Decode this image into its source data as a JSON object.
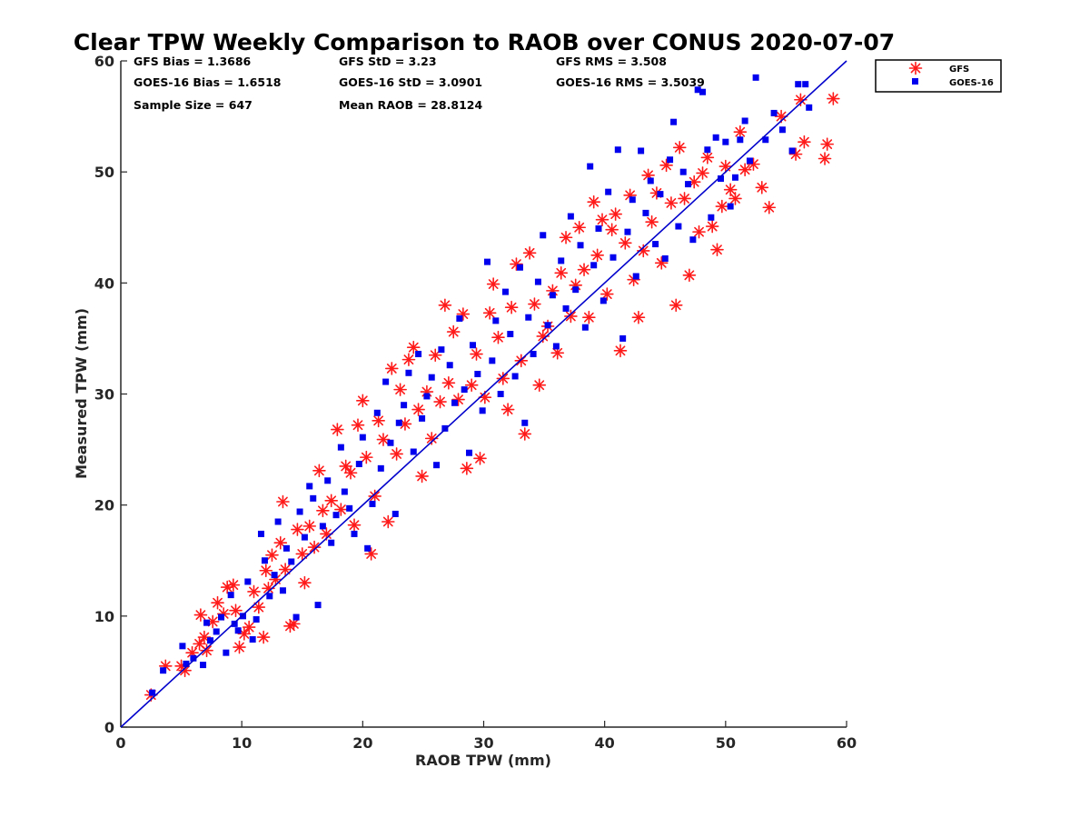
{
  "chart_data": {
    "type": "scatter",
    "title": "Clear TPW Weekly Comparison to RAOB over CONUS 2020-07-07",
    "xlabel": "RAOB TPW (mm)",
    "ylabel": "Measured TPW (mm)",
    "xlim": [
      0,
      60
    ],
    "ylim": [
      0,
      60
    ],
    "xticks": [
      "0",
      "10",
      "20",
      "30",
      "40",
      "50",
      "60"
    ],
    "yticks": [
      "0",
      "10",
      "20",
      "30",
      "40",
      "50",
      "60"
    ],
    "grid": false,
    "legend_position": "outside-top-right",
    "reference_line": {
      "name": "one-to-one line",
      "from": [
        0,
        0
      ],
      "to": [
        60,
        60
      ],
      "color": "#0000cc"
    },
    "stats": {
      "gfs_bias": "GFS Bias = 1.3686",
      "gfs_std": "GFS StD = 3.23",
      "gfs_rms": "GFS RMS = 3.508",
      "goes_bias": "GOES-16 Bias = 1.6518",
      "goes_std": "GOES-16 StD = 3.0901",
      "goes_rms": "GOES-16 RMS = 3.5039",
      "sample_size": "Sample Size = 647",
      "mean_raob": "Mean RAOB = 28.8124"
    },
    "series": [
      {
        "name": "GFS",
        "marker": "asterisk",
        "color": "#ff1a1a",
        "points": [
          [
            2.5,
            2.9
          ],
          [
            3.7,
            5.5
          ],
          [
            5.0,
            5.5
          ],
          [
            5.3,
            5.1
          ],
          [
            5.9,
            6.7
          ],
          [
            6.5,
            7.5
          ],
          [
            6.6,
            10.1
          ],
          [
            6.9,
            8.1
          ],
          [
            7.1,
            6.9
          ],
          [
            7.6,
            9.5
          ],
          [
            8.0,
            11.2
          ],
          [
            8.5,
            10.2
          ],
          [
            8.8,
            12.6
          ],
          [
            9.3,
            12.8
          ],
          [
            9.5,
            10.5
          ],
          [
            9.8,
            7.2
          ],
          [
            10.2,
            8.4
          ],
          [
            10.6,
            9.0
          ],
          [
            11.0,
            12.2
          ],
          [
            11.4,
            10.8
          ],
          [
            11.8,
            8.1
          ],
          [
            12.0,
            14.1
          ],
          [
            12.2,
            12.5
          ],
          [
            12.5,
            15.5
          ],
          [
            12.8,
            13.3
          ],
          [
            13.2,
            16.6
          ],
          [
            13.4,
            20.3
          ],
          [
            13.6,
            14.2
          ],
          [
            14.0,
            9.1
          ],
          [
            14.3,
            9.3
          ],
          [
            14.6,
            17.8
          ],
          [
            15.0,
            15.6
          ],
          [
            15.2,
            13.0
          ],
          [
            15.6,
            18.1
          ],
          [
            16.0,
            16.2
          ],
          [
            16.4,
            23.1
          ],
          [
            16.7,
            19.5
          ],
          [
            17.0,
            17.4
          ],
          [
            17.4,
            20.4
          ],
          [
            17.9,
            26.8
          ],
          [
            18.2,
            19.6
          ],
          [
            18.6,
            23.5
          ],
          [
            19.0,
            22.9
          ],
          [
            19.3,
            18.2
          ],
          [
            19.6,
            27.2
          ],
          [
            20.0,
            29.4
          ],
          [
            20.3,
            24.3
          ],
          [
            20.7,
            15.6
          ],
          [
            21.0,
            20.8
          ],
          [
            21.3,
            27.6
          ],
          [
            21.7,
            25.9
          ],
          [
            22.1,
            18.5
          ],
          [
            22.4,
            32.3
          ],
          [
            22.8,
            24.6
          ],
          [
            23.1,
            30.4
          ],
          [
            23.5,
            27.3
          ],
          [
            23.8,
            33.1
          ],
          [
            24.2,
            34.2
          ],
          [
            24.6,
            28.6
          ],
          [
            24.9,
            22.6
          ],
          [
            25.3,
            30.2
          ],
          [
            25.7,
            26.0
          ],
          [
            26.0,
            33.5
          ],
          [
            26.4,
            29.3
          ],
          [
            26.8,
            38.0
          ],
          [
            27.1,
            31.0
          ],
          [
            27.5,
            35.6
          ],
          [
            27.9,
            29.5
          ],
          [
            28.3,
            37.2
          ],
          [
            28.6,
            23.3
          ],
          [
            29.0,
            30.8
          ],
          [
            29.4,
            33.6
          ],
          [
            29.7,
            24.2
          ],
          [
            30.1,
            29.7
          ],
          [
            30.5,
            37.3
          ],
          [
            30.8,
            39.9
          ],
          [
            31.2,
            35.1
          ],
          [
            31.6,
            31.4
          ],
          [
            32.0,
            28.6
          ],
          [
            32.3,
            37.8
          ],
          [
            32.7,
            41.7
          ],
          [
            33.1,
            33.0
          ],
          [
            33.4,
            26.4
          ],
          [
            33.8,
            42.7
          ],
          [
            34.2,
            38.1
          ],
          [
            34.6,
            30.8
          ],
          [
            34.9,
            35.2
          ],
          [
            35.3,
            36.1
          ],
          [
            35.7,
            39.3
          ],
          [
            36.1,
            33.7
          ],
          [
            36.4,
            40.9
          ],
          [
            36.8,
            44.1
          ],
          [
            37.2,
            37.0
          ],
          [
            37.6,
            39.8
          ],
          [
            37.9,
            45.0
          ],
          [
            38.3,
            41.2
          ],
          [
            38.7,
            36.9
          ],
          [
            39.1,
            47.3
          ],
          [
            39.4,
            42.5
          ],
          [
            39.8,
            45.7
          ],
          [
            40.2,
            39.0
          ],
          [
            40.6,
            44.8
          ],
          [
            40.9,
            46.2
          ],
          [
            41.3,
            33.9
          ],
          [
            41.7,
            43.6
          ],
          [
            42.1,
            47.9
          ],
          [
            42.4,
            40.3
          ],
          [
            42.8,
            36.9
          ],
          [
            43.2,
            42.9
          ],
          [
            43.6,
            49.7
          ],
          [
            43.9,
            45.5
          ],
          [
            44.3,
            48.1
          ],
          [
            44.7,
            41.8
          ],
          [
            45.1,
            50.6
          ],
          [
            45.5,
            47.2
          ],
          [
            45.9,
            38.0
          ],
          [
            46.2,
            52.2
          ],
          [
            46.6,
            47.6
          ],
          [
            47.0,
            40.7
          ],
          [
            47.4,
            49.1
          ],
          [
            47.8,
            44.6
          ],
          [
            48.1,
            49.9
          ],
          [
            48.5,
            51.3
          ],
          [
            48.9,
            45.1
          ],
          [
            49.3,
            43.0
          ],
          [
            49.7,
            46.9
          ],
          [
            50.0,
            50.5
          ],
          [
            50.4,
            48.4
          ],
          [
            50.8,
            47.6
          ],
          [
            51.2,
            53.6
          ],
          [
            51.6,
            50.2
          ],
          [
            52.3,
            50.7
          ],
          [
            53.0,
            48.6
          ],
          [
            53.6,
            46.8
          ],
          [
            54.6,
            55.0
          ],
          [
            55.8,
            51.6
          ],
          [
            56.2,
            56.5
          ],
          [
            56.5,
            52.7
          ],
          [
            58.2,
            51.2
          ],
          [
            58.4,
            52.5
          ],
          [
            58.9,
            56.6
          ]
        ]
      },
      {
        "name": "GOES-16",
        "marker": "square",
        "color": "#0000ee",
        "points": [
          [
            2.6,
            3.1
          ],
          [
            3.5,
            5.1
          ],
          [
            5.1,
            7.3
          ],
          [
            5.4,
            5.7
          ],
          [
            6.0,
            6.2
          ],
          [
            6.8,
            5.6
          ],
          [
            7.1,
            9.4
          ],
          [
            7.4,
            7.8
          ],
          [
            7.9,
            8.6
          ],
          [
            8.3,
            9.9
          ],
          [
            8.7,
            6.7
          ],
          [
            9.1,
            11.9
          ],
          [
            9.4,
            9.3
          ],
          [
            9.7,
            8.7
          ],
          [
            10.1,
            10.0
          ],
          [
            10.5,
            13.1
          ],
          [
            10.9,
            7.9
          ],
          [
            11.2,
            9.7
          ],
          [
            11.6,
            17.4
          ],
          [
            11.9,
            15.0
          ],
          [
            12.3,
            11.8
          ],
          [
            12.7,
            13.7
          ],
          [
            13.0,
            18.5
          ],
          [
            13.4,
            12.3
          ],
          [
            13.7,
            16.1
          ],
          [
            14.1,
            14.9
          ],
          [
            14.5,
            9.9
          ],
          [
            14.8,
            19.4
          ],
          [
            15.2,
            17.1
          ],
          [
            15.6,
            21.7
          ],
          [
            15.9,
            20.6
          ],
          [
            16.3,
            11.0
          ],
          [
            16.7,
            18.1
          ],
          [
            17.1,
            22.2
          ],
          [
            17.4,
            16.6
          ],
          [
            17.8,
            19.1
          ],
          [
            18.2,
            25.2
          ],
          [
            18.5,
            21.2
          ],
          [
            18.9,
            19.7
          ],
          [
            19.3,
            17.4
          ],
          [
            19.7,
            23.7
          ],
          [
            20.0,
            26.1
          ],
          [
            20.4,
            16.1
          ],
          [
            20.8,
            20.1
          ],
          [
            21.2,
            28.3
          ],
          [
            21.5,
            23.3
          ],
          [
            21.9,
            31.1
          ],
          [
            22.3,
            25.6
          ],
          [
            22.7,
            19.2
          ],
          [
            23.0,
            27.4
          ],
          [
            23.4,
            29.0
          ],
          [
            23.8,
            31.9
          ],
          [
            24.2,
            24.8
          ],
          [
            24.6,
            33.6
          ],
          [
            24.9,
            27.8
          ],
          [
            25.3,
            29.8
          ],
          [
            25.7,
            31.5
          ],
          [
            26.1,
            23.6
          ],
          [
            26.5,
            34.0
          ],
          [
            26.8,
            26.9
          ],
          [
            27.2,
            32.6
          ],
          [
            27.6,
            29.2
          ],
          [
            28.0,
            36.8
          ],
          [
            28.4,
            30.4
          ],
          [
            28.8,
            24.7
          ],
          [
            29.1,
            34.4
          ],
          [
            29.5,
            31.8
          ],
          [
            29.9,
            28.5
          ],
          [
            30.3,
            41.9
          ],
          [
            30.7,
            33.0
          ],
          [
            31.0,
            36.6
          ],
          [
            31.4,
            30.0
          ],
          [
            31.8,
            39.2
          ],
          [
            32.2,
            35.4
          ],
          [
            32.6,
            31.6
          ],
          [
            33.0,
            41.4
          ],
          [
            33.4,
            27.4
          ],
          [
            33.7,
            36.9
          ],
          [
            34.1,
            33.6
          ],
          [
            34.5,
            40.1
          ],
          [
            34.9,
            44.3
          ],
          [
            35.3,
            36.2
          ],
          [
            35.7,
            38.9
          ],
          [
            36.0,
            34.3
          ],
          [
            36.4,
            42.0
          ],
          [
            36.8,
            37.7
          ],
          [
            37.2,
            46.0
          ],
          [
            37.6,
            39.4
          ],
          [
            38.0,
            43.4
          ],
          [
            38.4,
            36.0
          ],
          [
            38.8,
            50.5
          ],
          [
            39.1,
            41.6
          ],
          [
            39.5,
            44.9
          ],
          [
            39.9,
            38.4
          ],
          [
            40.3,
            48.2
          ],
          [
            40.7,
            42.3
          ],
          [
            41.1,
            52.0
          ],
          [
            41.5,
            35.0
          ],
          [
            41.9,
            44.6
          ],
          [
            42.3,
            47.5
          ],
          [
            42.6,
            40.6
          ],
          [
            43.0,
            51.9
          ],
          [
            43.4,
            46.3
          ],
          [
            43.8,
            49.2
          ],
          [
            44.2,
            43.5
          ],
          [
            44.6,
            48.0
          ],
          [
            45.0,
            42.2
          ],
          [
            45.4,
            51.1
          ],
          [
            45.7,
            54.5
          ],
          [
            46.1,
            45.1
          ],
          [
            46.5,
            50.0
          ],
          [
            46.9,
            48.9
          ],
          [
            47.3,
            43.9
          ],
          [
            47.7,
            57.4
          ],
          [
            48.1,
            57.2
          ],
          [
            48.5,
            52.0
          ],
          [
            48.8,
            45.9
          ],
          [
            49.2,
            53.1
          ],
          [
            49.6,
            49.4
          ],
          [
            50.0,
            52.7
          ],
          [
            50.4,
            46.9
          ],
          [
            50.8,
            49.5
          ],
          [
            51.2,
            52.9
          ],
          [
            51.6,
            54.6
          ],
          [
            52.0,
            51.0
          ],
          [
            52.5,
            58.5
          ],
          [
            53.3,
            52.9
          ],
          [
            54.0,
            55.3
          ],
          [
            54.7,
            53.8
          ],
          [
            55.5,
            51.9
          ],
          [
            56.0,
            57.9
          ],
          [
            56.6,
            57.9
          ],
          [
            56.9,
            55.8
          ]
        ]
      }
    ]
  }
}
